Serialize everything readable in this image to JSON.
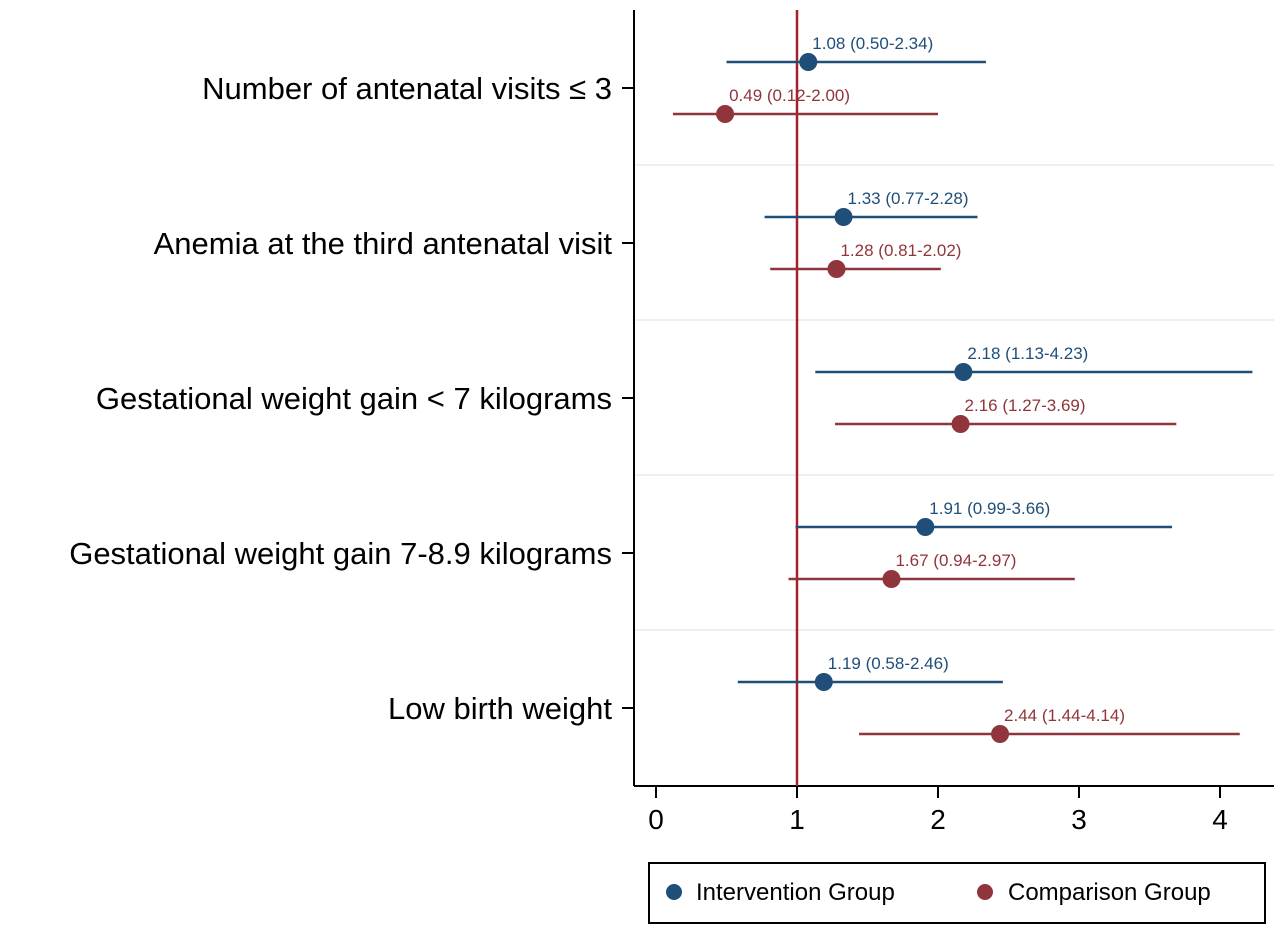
{
  "chart_data": {
    "type": "forest",
    "title": "",
    "xlabel": "",
    "ylabel": "",
    "xlim": [
      -0.15,
      4.4
    ],
    "xticks": [
      "0",
      "1",
      "2",
      "3",
      "4"
    ],
    "reference_line": 1,
    "grid": "horizontal separators between categories",
    "legend_position": "bottom",
    "categories": [
      "Number of antenatal visits ≤ 3",
      "Anemia at the third antenatal visit",
      "Gestational weight gain < 7 kilograms",
      "Gestational weight gain 7-8.9 kilograms",
      "Low birth weight"
    ],
    "series": [
      {
        "name": "Intervention Group",
        "color": "#1f4e79",
        "points": [
          {
            "est": 1.08,
            "lo": 0.5,
            "hi": 2.34,
            "label": "1.08 (0.50-2.34)"
          },
          {
            "est": 1.33,
            "lo": 0.77,
            "hi": 2.28,
            "label": "1.33 (0.77-2.28)"
          },
          {
            "est": 2.18,
            "lo": 1.13,
            "hi": 4.23,
            "label": "2.18 (1.13-4.23)"
          },
          {
            "est": 1.91,
            "lo": 0.99,
            "hi": 3.66,
            "label": "1.91 (0.99-3.66)"
          },
          {
            "est": 1.19,
            "lo": 0.58,
            "hi": 2.46,
            "label": "1.19 (0.58-2.46)"
          }
        ]
      },
      {
        "name": "Comparison Group",
        "color": "#90353b",
        "points": [
          {
            "est": 0.49,
            "lo": 0.12,
            "hi": 2.0,
            "label": "0.49 (0.12-2.00)"
          },
          {
            "est": 1.28,
            "lo": 0.81,
            "hi": 2.02,
            "label": "1.28 (0.81-2.02)"
          },
          {
            "est": 2.16,
            "lo": 1.27,
            "hi": 3.69,
            "label": "2.16 (1.27-3.69)"
          },
          {
            "est": 1.67,
            "lo": 0.94,
            "hi": 2.97,
            "label": "1.67 (0.94-2.97)"
          },
          {
            "est": 2.44,
            "lo": 1.44,
            "hi": 4.14,
            "label": "2.44 (1.44-4.14)"
          }
        ]
      }
    ]
  },
  "legend": {
    "items": [
      {
        "name": "Intervention Group",
        "color": "#1f4e79"
      },
      {
        "name": "Comparison Group",
        "color": "#90353b"
      }
    ]
  }
}
